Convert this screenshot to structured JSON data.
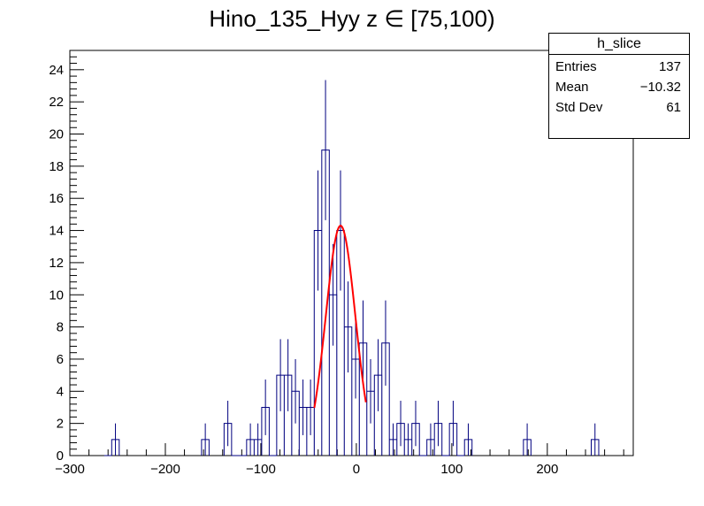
{
  "title": "Hino_135_Hyy z  ∈ [75,100)",
  "stats": {
    "name": "h_slice",
    "rows": [
      {
        "label": "Entries",
        "value": "137"
      },
      {
        "label": "Mean",
        "value": "−10.32"
      },
      {
        "label": "Std Dev",
        "value": "61"
      }
    ]
  },
  "colors": {
    "histogram": "#00007f",
    "fit": "#ff0000",
    "axis": "#000000"
  },
  "chart_data": {
    "type": "histogram",
    "xlim": [
      -300,
      290
    ],
    "ylim": [
      0,
      25.2
    ],
    "x_ticks": [
      -300,
      -200,
      -100,
      0,
      100,
      200
    ],
    "x_tick_labels": [
      "−300",
      "−200",
      "−100",
      "0",
      "100",
      "200"
    ],
    "y_ticks": [
      0,
      2,
      4,
      6,
      8,
      10,
      12,
      14,
      16,
      18,
      20,
      22,
      24
    ],
    "y_tick_labels": [
      "0",
      "2",
      "4",
      "6",
      "8",
      "10",
      "12",
      "14",
      "16",
      "18",
      "20",
      "22",
      "24"
    ],
    "bin_width": 7.867,
    "bins": [
      {
        "x": -264.1,
        "count": 0,
        "error": 0
      },
      {
        "x": -256.2,
        "count": 1,
        "error": 1
      },
      {
        "x": -162.1,
        "count": 1,
        "error": 1
      },
      {
        "x": -138.5,
        "count": 2,
        "error": 1.41
      },
      {
        "x": -130.6,
        "count": 0,
        "error": 0
      },
      {
        "x": -122.7,
        "count": 0,
        "error": 0
      },
      {
        "x": -114.9,
        "count": 1,
        "error": 1
      },
      {
        "x": -107.0,
        "count": 1,
        "error": 1
      },
      {
        "x": -99.1,
        "count": 3,
        "error": 1.73
      },
      {
        "x": -91.3,
        "count": 0,
        "error": 0
      },
      {
        "x": -83.4,
        "count": 5,
        "error": 2.24
      },
      {
        "x": -75.5,
        "count": 5,
        "error": 2.24
      },
      {
        "x": -67.7,
        "count": 4,
        "error": 2
      },
      {
        "x": -59.8,
        "count": 3,
        "error": 1.73
      },
      {
        "x": -51.9,
        "count": 3,
        "error": 1.73
      },
      {
        "x": -44.1,
        "count": 14,
        "error": 3.74
      },
      {
        "x": -36.2,
        "count": 19,
        "error": 4.36
      },
      {
        "x": -28.3,
        "count": 10,
        "error": 3.16
      },
      {
        "x": -20.5,
        "count": 14,
        "error": 3.74
      },
      {
        "x": -12.6,
        "count": 8,
        "error": 2.83
      },
      {
        "x": -4.7,
        "count": 6,
        "error": 2.45
      },
      {
        "x": 3.1,
        "count": 7,
        "error": 2.65
      },
      {
        "x": 11.0,
        "count": 4,
        "error": 2
      },
      {
        "x": 18.9,
        "count": 5,
        "error": 2.24
      },
      {
        "x": 26.7,
        "count": 7,
        "error": 2.65
      },
      {
        "x": 34.6,
        "count": 1,
        "error": 1
      },
      {
        "x": 42.5,
        "count": 2,
        "error": 1.41
      },
      {
        "x": 50.3,
        "count": 1,
        "error": 1
      },
      {
        "x": 58.2,
        "count": 2,
        "error": 1.41
      },
      {
        "x": 66.1,
        "count": 0,
        "error": 0
      },
      {
        "x": 73.9,
        "count": 1,
        "error": 1
      },
      {
        "x": 81.8,
        "count": 2,
        "error": 1.41
      },
      {
        "x": 89.7,
        "count": 0,
        "error": 0
      },
      {
        "x": 97.5,
        "count": 2,
        "error": 1.41
      },
      {
        "x": 105.4,
        "count": 0,
        "error": 0
      },
      {
        "x": 113.3,
        "count": 1,
        "error": 1
      },
      {
        "x": 175.0,
        "count": 1,
        "error": 1
      },
      {
        "x": 246.0,
        "count": 1,
        "error": 1
      }
    ],
    "fit": {
      "type": "gaussian",
      "constant": 14.3,
      "mean": -16.5,
      "sigma": 15.5,
      "range": [
        -44,
        10
      ]
    }
  }
}
